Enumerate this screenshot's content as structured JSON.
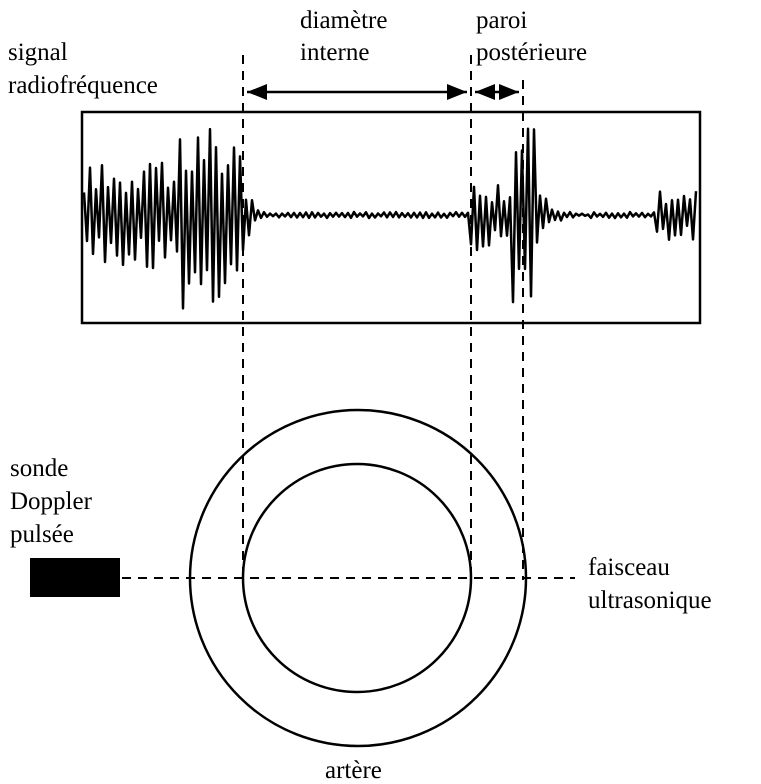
{
  "labels": {
    "signal": [
      "signal",
      "radiofréquence"
    ],
    "diameter": [
      "diamètre",
      "interne"
    ],
    "wall": [
      "paroi",
      "postérieure"
    ],
    "probe": [
      "sonde",
      "Doppler",
      "pulsée"
    ],
    "beam": [
      "faisceau",
      "ultrasonique"
    ],
    "artery": [
      "artère"
    ]
  }
}
